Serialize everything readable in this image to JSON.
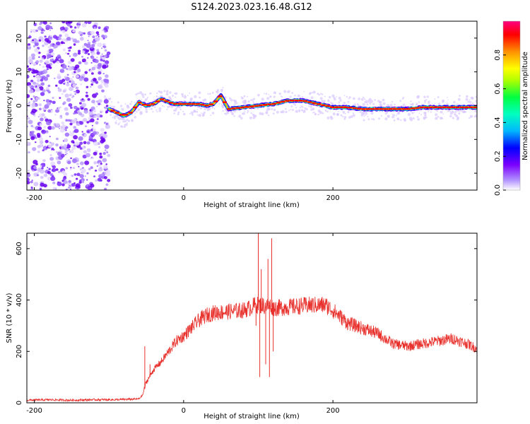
{
  "chart_data": [
    {
      "type": "heatmap",
      "title": "S124.2023.023.16.48.G12",
      "xlabel": "Height of straight line (km)",
      "ylabel": "Frequency (Hz)",
      "xlim": [
        -210,
        393
      ],
      "ylim": [
        -25,
        25
      ],
      "xticks": [
        -200,
        0,
        200
      ],
      "yticks": [
        -20,
        -10,
        0,
        10,
        20
      ],
      "colorbar": {
        "label": "Normalized spectral amplitude",
        "range": [
          0,
          1
        ],
        "ticks": [
          "0.0",
          "0.2",
          "0.4",
          "0.6",
          "0.8"
        ],
        "colormap": [
          "#ffffff",
          "#7b00ff",
          "#0000ff",
          "#00b7ff",
          "#00ff7f",
          "#7fff00",
          "#ffff00",
          "#ff7f00",
          "#ff0000",
          "#ff0080"
        ]
      },
      "noise_region": {
        "x_range": [
          -210,
          -100
        ],
        "y_range": [
          -25,
          25
        ]
      },
      "track_x": [
        -100,
        -90,
        -80,
        -70,
        -60,
        -50,
        -40,
        -30,
        -20,
        -10,
        0,
        10,
        20,
        30,
        40,
        50,
        60,
        80,
        100,
        120,
        140,
        160,
        180,
        200,
        220,
        240,
        260,
        280,
        300,
        320,
        340,
        360,
        380,
        393
      ],
      "track_y": [
        -1,
        -2,
        -3,
        -2,
        1,
        0,
        0.5,
        2,
        1,
        0.5,
        0.5,
        0.5,
        0.5,
        0,
        0.5,
        3,
        -1,
        -0.5,
        0,
        0.5,
        1.5,
        1.5,
        0.5,
        -0.5,
        -0.5,
        -1,
        -1,
        -1,
        -1,
        -0.5,
        -0.5,
        -0.5,
        -0.5,
        -0.5
      ]
    },
    {
      "type": "line",
      "xlabel": "Height of straight line (km)",
      "ylabel": "SNR (10 * v/v)",
      "xlim": [
        -210,
        393
      ],
      "ylim": [
        0,
        660
      ],
      "xticks": [
        -200,
        0,
        200
      ],
      "yticks": [
        0,
        200,
        400,
        600
      ],
      "color": "#e8312c",
      "x": [
        -210,
        -180,
        -150,
        -120,
        -90,
        -60,
        -55,
        -50,
        -40,
        -30,
        -20,
        -10,
        0,
        10,
        20,
        30,
        40,
        60,
        80,
        90,
        95,
        100,
        105,
        110,
        115,
        120,
        130,
        150,
        170,
        190,
        200,
        220,
        240,
        260,
        280,
        300,
        320,
        340,
        360,
        380,
        393
      ],
      "y": [
        10,
        12,
        10,
        12,
        12,
        15,
        30,
        80,
        130,
        160,
        200,
        240,
        260,
        290,
        320,
        340,
        350,
        355,
        360,
        370,
        380,
        380,
        380,
        375,
        380,
        370,
        370,
        375,
        380,
        380,
        360,
        310,
        290,
        270,
        230,
        220,
        230,
        240,
        250,
        230,
        210
      ],
      "spikes": [
        {
          "x": 97,
          "y": 300
        },
        {
          "x": 100,
          "y": 660
        },
        {
          "x": 102,
          "y": 100
        },
        {
          "x": 104,
          "y": 520
        },
        {
          "x": 110,
          "y": 150
        },
        {
          "x": 113,
          "y": 560
        },
        {
          "x": 115,
          "y": 100
        },
        {
          "x": 118,
          "y": 640
        },
        {
          "x": 120,
          "y": 200
        },
        {
          "x": -52,
          "y": 220
        },
        {
          "x": -45,
          "y": 150
        }
      ]
    }
  ]
}
